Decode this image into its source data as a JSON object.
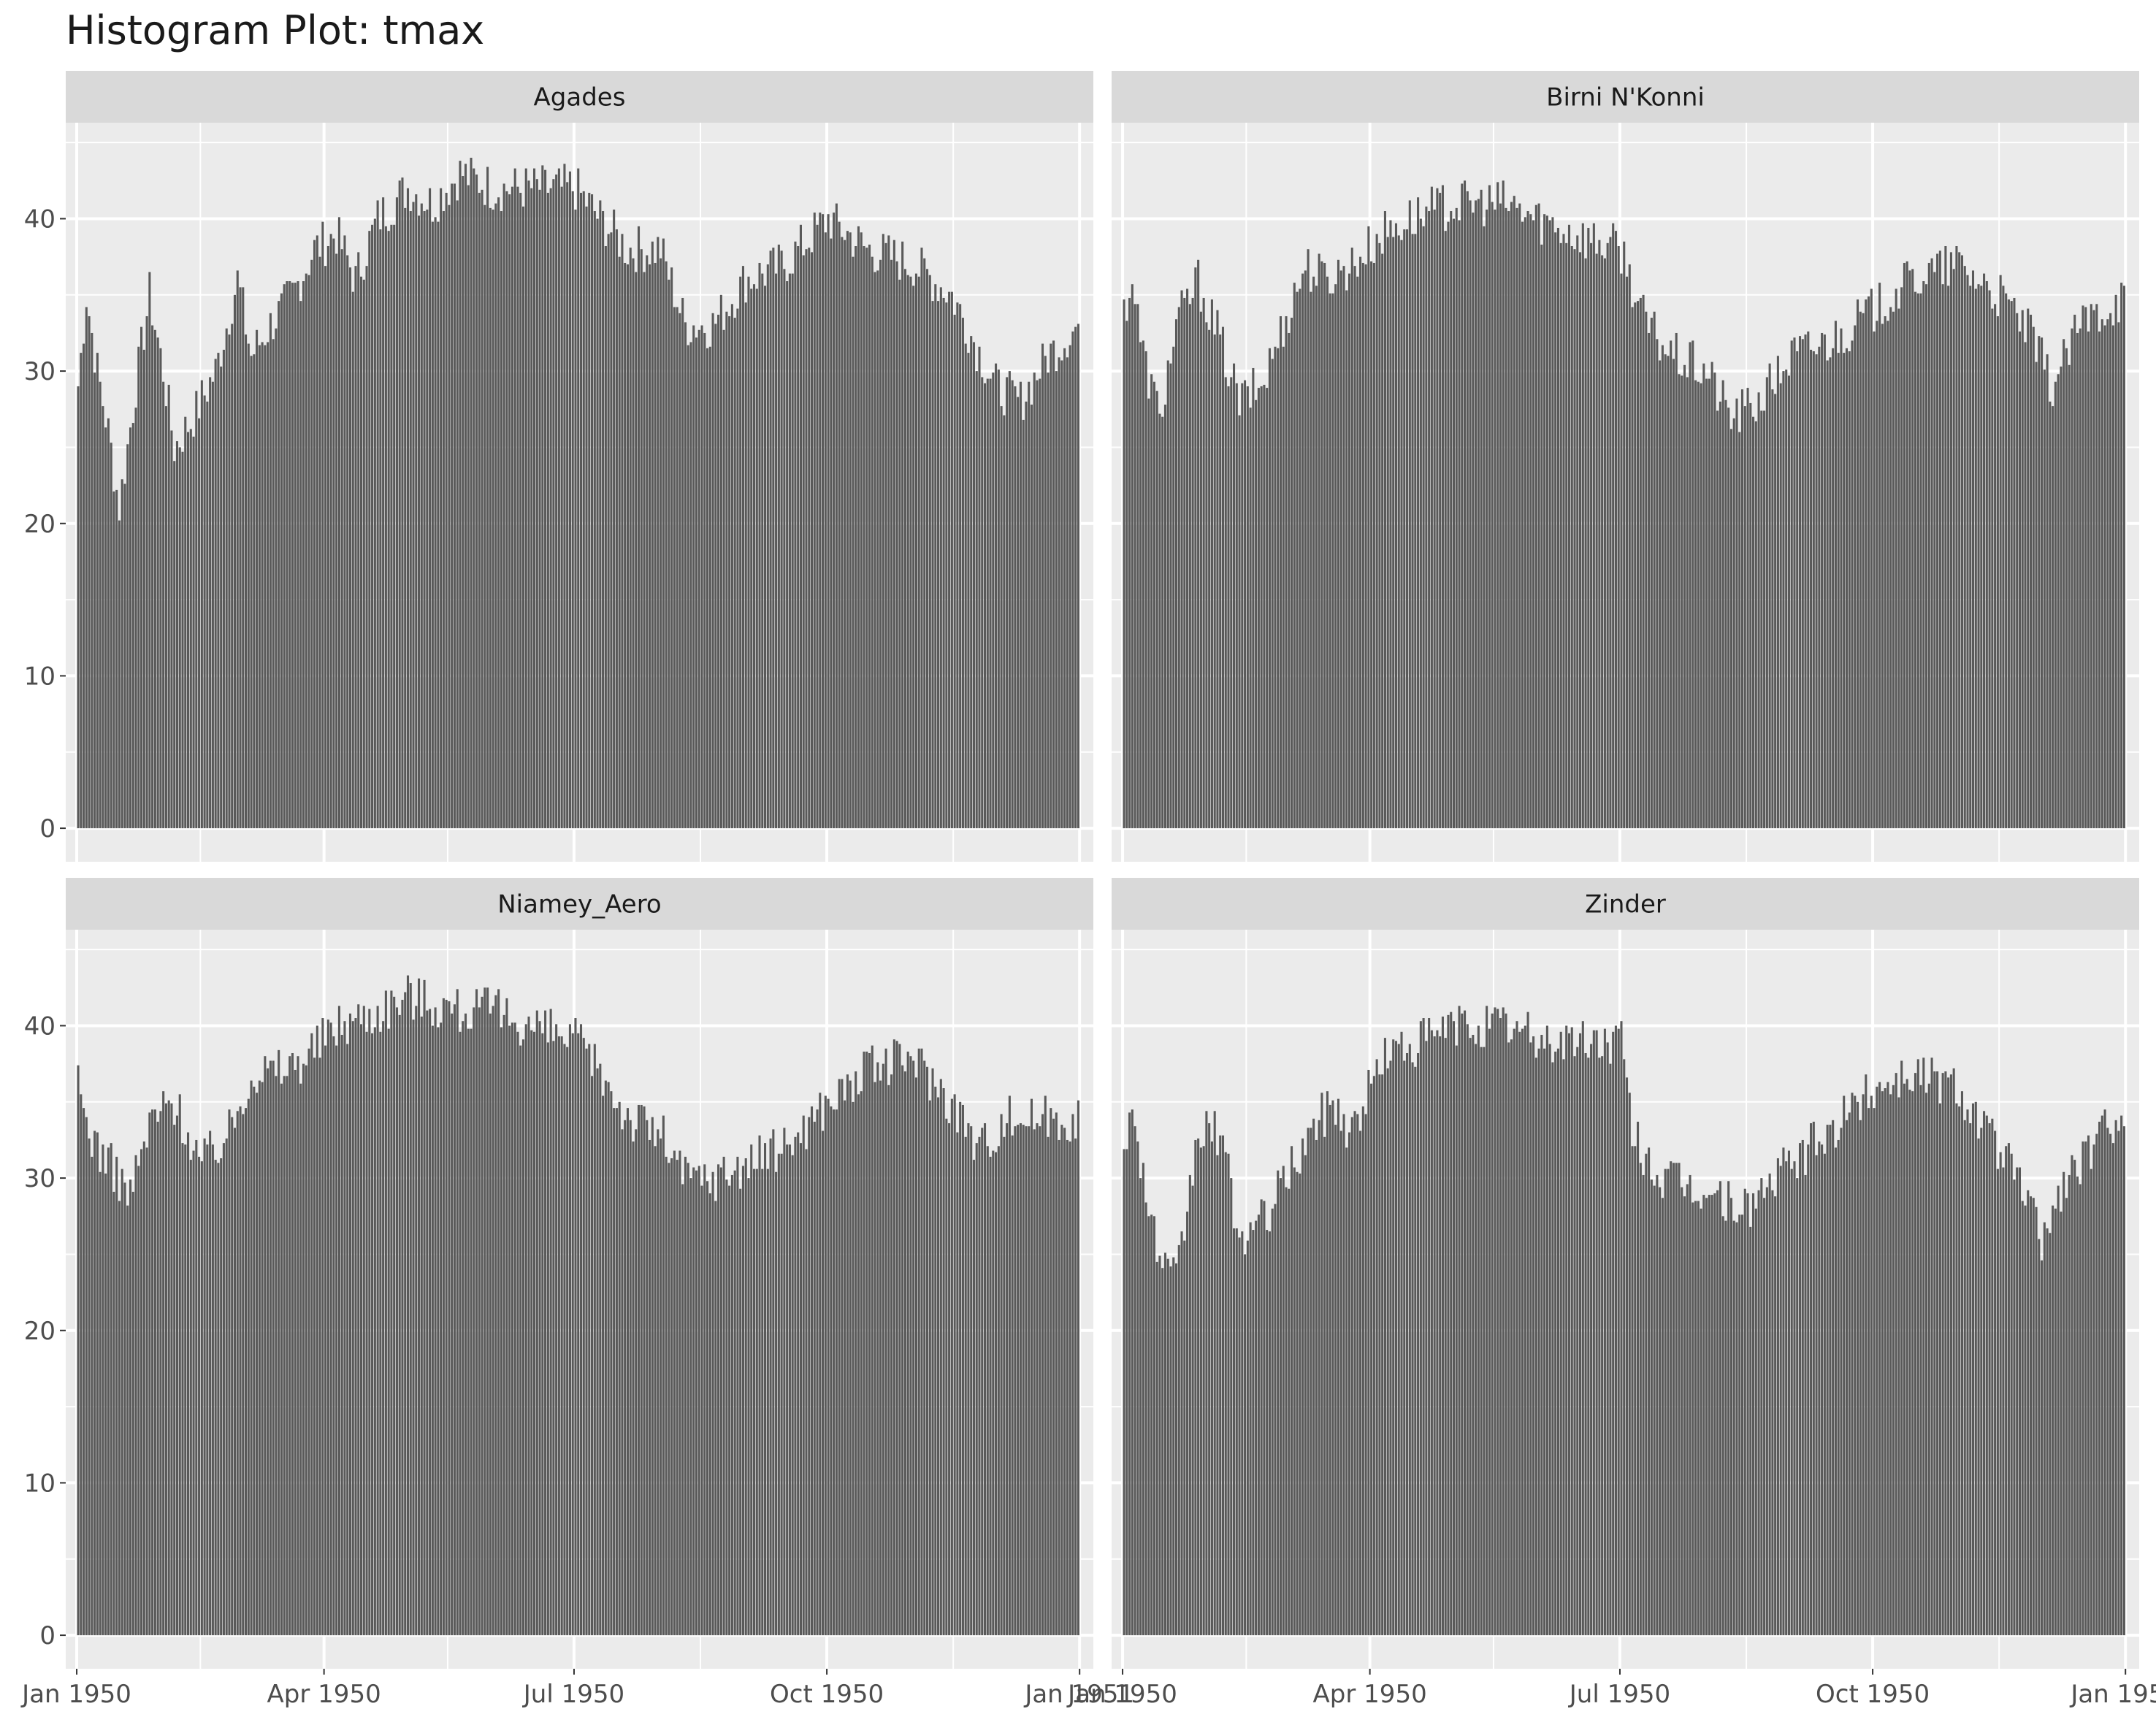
{
  "title": "Histogram Plot: tmax",
  "chart_data": {
    "type": "bar",
    "title": "Histogram Plot: tmax",
    "x_axis_type": "date",
    "xlim": [
      "1949-12-28",
      "1951-01-06"
    ],
    "ylim": [
      -2.2,
      46.3
    ],
    "x_ticks": [
      {
        "date": "1950-01-01",
        "label": "Jan 1950"
      },
      {
        "date": "1950-04-01",
        "label": "Apr 1950"
      },
      {
        "date": "1950-07-01",
        "label": "Jul 1950"
      },
      {
        "date": "1950-10-01",
        "label": "Oct 1950"
      },
      {
        "date": "1951-01-01",
        "label": "Jan 1951"
      }
    ],
    "x_minor_ticks": [
      "1950-02-15",
      "1950-05-16",
      "1950-08-16",
      "1950-11-16"
    ],
    "y_ticks": [
      0,
      10,
      20,
      30,
      40
    ],
    "y_minor_ticks": [
      5,
      15,
      25,
      35,
      45
    ],
    "grid": true,
    "bar_color": "#595959",
    "panel_background": "#ebebeb",
    "strip_background": "#d9d9d9",
    "series_anchors_note_removed": true,
    "panels": [
      {
        "name": "Agades",
        "anchors": [
          [
            "1950-01-01",
            29
          ],
          [
            "1950-01-04",
            35
          ],
          [
            "1950-01-08",
            30
          ],
          [
            "1950-01-12",
            26
          ],
          [
            "1950-01-16",
            21
          ],
          [
            "1950-01-22",
            29
          ],
          [
            "1950-01-27",
            35
          ],
          [
            "1950-02-01",
            30
          ],
          [
            "1950-02-05",
            25
          ],
          [
            "1950-02-12",
            27
          ],
          [
            "1950-02-20",
            30
          ],
          [
            "1950-02-28",
            36
          ],
          [
            "1950-03-05",
            31
          ],
          [
            "1950-03-12",
            33
          ],
          [
            "1950-03-20",
            35
          ],
          [
            "1950-03-28",
            38
          ],
          [
            "1950-04-05",
            39
          ],
          [
            "1950-04-12",
            36
          ],
          [
            "1950-04-20",
            40
          ],
          [
            "1950-05-01",
            42
          ],
          [
            "1950-05-10",
            41
          ],
          [
            "1950-05-20",
            43
          ],
          [
            "1950-06-01",
            42
          ],
          [
            "1950-06-15",
            42
          ],
          [
            "1950-07-01",
            42
          ],
          [
            "1950-07-10",
            40
          ],
          [
            "1950-07-20",
            38
          ],
          [
            "1950-08-01",
            38
          ],
          [
            "1950-08-10",
            33
          ],
          [
            "1950-08-20",
            33
          ],
          [
            "1950-09-01",
            36
          ],
          [
            "1950-09-15",
            37
          ],
          [
            "1950-10-01",
            40
          ],
          [
            "1950-10-15",
            38
          ],
          [
            "1950-11-01",
            37
          ],
          [
            "1950-11-15",
            35
          ],
          [
            "1950-12-01",
            29
          ],
          [
            "1950-12-10",
            28
          ],
          [
            "1950-12-20",
            31
          ],
          [
            "1950-12-31",
            33
          ]
        ]
      },
      {
        "name": "Birni N'Konni",
        "anchors": [
          [
            "1950-01-01",
            34
          ],
          [
            "1950-01-04",
            36
          ],
          [
            "1950-01-08",
            31
          ],
          [
            "1950-01-14",
            27
          ],
          [
            "1950-01-20",
            33
          ],
          [
            "1950-01-28",
            36
          ],
          [
            "1950-02-05",
            32
          ],
          [
            "1950-02-12",
            28
          ],
          [
            "1950-02-20",
            29
          ],
          [
            "1950-02-28",
            33
          ],
          [
            "1950-03-08",
            37
          ],
          [
            "1950-03-15",
            36
          ],
          [
            "1950-03-25",
            37
          ],
          [
            "1950-04-05",
            39
          ],
          [
            "1950-04-15",
            40
          ],
          [
            "1950-05-01",
            41
          ],
          [
            "1950-05-20",
            41
          ],
          [
            "1950-06-01",
            40
          ],
          [
            "1950-06-15",
            39
          ],
          [
            "1950-07-01",
            38
          ],
          [
            "1950-07-10",
            33
          ],
          [
            "1950-07-20",
            31
          ],
          [
            "1950-08-01",
            30
          ],
          [
            "1950-08-10",
            27
          ],
          [
            "1950-08-20",
            28
          ],
          [
            "1950-09-01",
            31
          ],
          [
            "1950-09-15",
            32
          ],
          [
            "1950-10-01",
            34
          ],
          [
            "1950-10-15",
            36
          ],
          [
            "1950-11-01",
            37
          ],
          [
            "1950-11-15",
            35
          ],
          [
            "1950-11-25",
            33
          ],
          [
            "1950-12-05",
            29
          ],
          [
            "1950-12-15",
            33
          ],
          [
            "1950-12-31",
            35
          ]
        ]
      },
      {
        "name": "Niamey_Aero",
        "anchors": [
          [
            "1950-01-01",
            36
          ],
          [
            "1950-01-05",
            33
          ],
          [
            "1950-01-12",
            31
          ],
          [
            "1950-01-20",
            29
          ],
          [
            "1950-01-28",
            34
          ],
          [
            "1950-02-05",
            35
          ],
          [
            "1950-02-15",
            31
          ],
          [
            "1950-02-25",
            33
          ],
          [
            "1950-03-05",
            37
          ],
          [
            "1950-03-15",
            37
          ],
          [
            "1950-03-25",
            38
          ],
          [
            "1950-04-05",
            40
          ],
          [
            "1950-04-20",
            41
          ],
          [
            "1950-05-01",
            42
          ],
          [
            "1950-05-20",
            41
          ],
          [
            "1950-06-01",
            41
          ],
          [
            "1950-06-15",
            40
          ],
          [
            "1950-07-01",
            39
          ],
          [
            "1950-07-10",
            37
          ],
          [
            "1950-07-20",
            34
          ],
          [
            "1950-08-01",
            33
          ],
          [
            "1950-08-10",
            30
          ],
          [
            "1950-08-20",
            30
          ],
          [
            "1950-09-01",
            31
          ],
          [
            "1950-09-15",
            32
          ],
          [
            "1950-10-01",
            35
          ],
          [
            "1950-10-15",
            37
          ],
          [
            "1950-11-01",
            38
          ],
          [
            "1950-11-15",
            35
          ],
          [
            "1950-11-25",
            32
          ],
          [
            "1950-12-05",
            34
          ],
          [
            "1950-12-15",
            34
          ],
          [
            "1950-12-31",
            34
          ]
        ]
      },
      {
        "name": "Zinder",
        "anchors": [
          [
            "1950-01-01",
            33
          ],
          [
            "1950-01-05",
            34
          ],
          [
            "1950-01-10",
            28
          ],
          [
            "1950-01-15",
            24
          ],
          [
            "1950-01-20",
            23
          ],
          [
            "1950-01-28",
            33
          ],
          [
            "1950-02-05",
            33
          ],
          [
            "1950-02-12",
            26
          ],
          [
            "1950-02-20",
            27
          ],
          [
            "1950-03-01",
            30
          ],
          [
            "1950-03-10",
            33
          ],
          [
            "1950-03-18",
            35
          ],
          [
            "1950-03-25",
            33
          ],
          [
            "1950-04-05",
            38
          ],
          [
            "1950-04-20",
            39
          ],
          [
            "1950-05-01",
            40
          ],
          [
            "1950-05-20",
            40
          ],
          [
            "1950-06-01",
            39
          ],
          [
            "1950-06-15",
            39
          ],
          [
            "1950-07-01",
            39
          ],
          [
            "1950-07-05",
            33
          ],
          [
            "1950-07-15",
            30
          ],
          [
            "1950-08-01",
            29
          ],
          [
            "1950-08-15",
            28
          ],
          [
            "1950-09-01",
            31
          ],
          [
            "1950-09-15",
            33
          ],
          [
            "1950-10-01",
            36
          ],
          [
            "1950-10-15",
            37
          ],
          [
            "1950-11-01",
            36
          ],
          [
            "1950-11-15",
            32
          ],
          [
            "1950-11-25",
            29
          ],
          [
            "1950-12-01",
            26
          ],
          [
            "1950-12-10",
            30
          ],
          [
            "1950-12-20",
            32
          ],
          [
            "1950-12-31",
            35
          ]
        ]
      }
    ]
  }
}
